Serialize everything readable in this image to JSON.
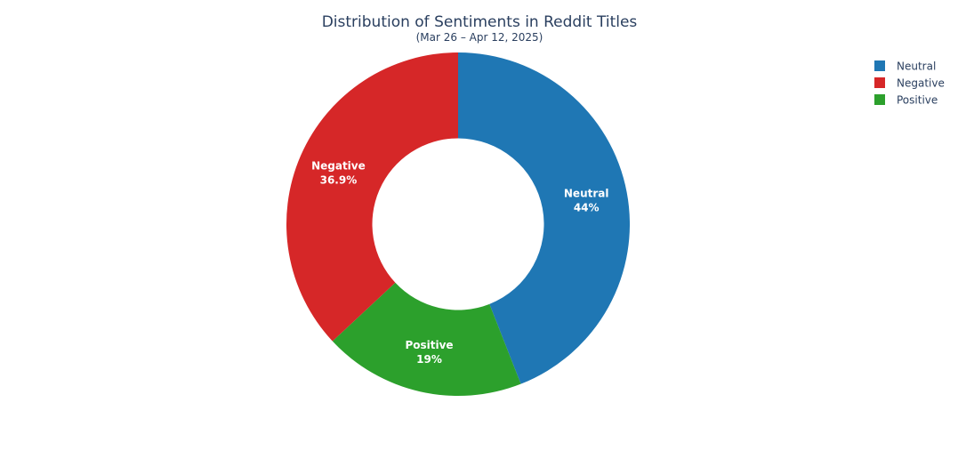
{
  "chart_data": {
    "type": "pie",
    "hole": 0.5,
    "title": "Distribution of Sentiments in Reddit Titles",
    "subtitle": "(Mar 26 – Apr 12, 2025)",
    "legend_position": "top-right",
    "slices": [
      {
        "label": "Neutral",
        "percent": 44,
        "percent_text": "44%",
        "color": "#1f77b4"
      },
      {
        "label": "Negative",
        "percent": 36.9,
        "percent_text": "36.9%",
        "color": "#d62728"
      },
      {
        "label": "Positive",
        "percent": 19,
        "percent_text": "19%",
        "color": "#2ca02c"
      }
    ],
    "draw_order": [
      "Neutral",
      "Positive",
      "Negative"
    ],
    "direction": "clockwise",
    "start": "top"
  }
}
